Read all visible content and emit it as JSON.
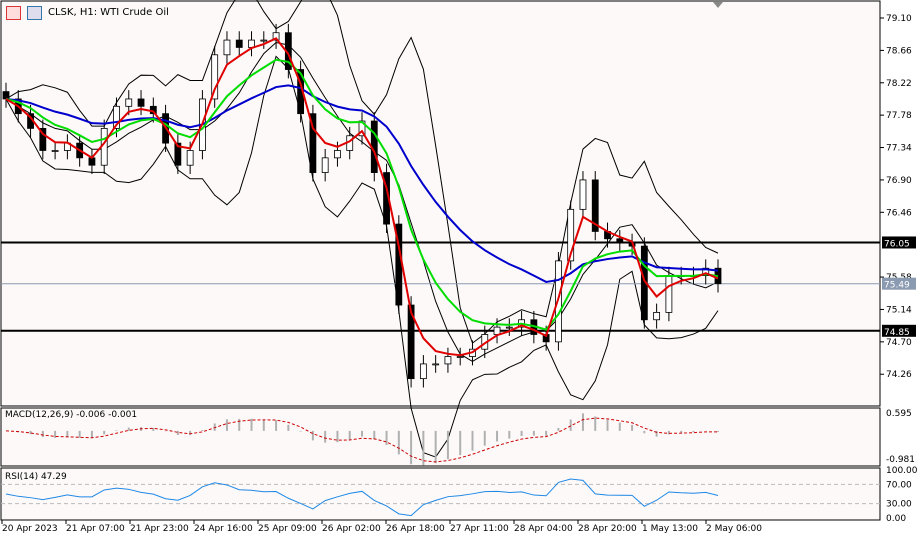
{
  "header": {
    "title": "CLSK, H1: WTI Crude Oil"
  },
  "colors": {
    "bg": "#fdf9f9",
    "fast_ma": "#e00000",
    "mid_ma": "#00dd00",
    "slow_ma": "#0000cc",
    "bands": "#000000",
    "rsi": "#1e88e5",
    "macd_signal": "#cc0000",
    "macd_hist": "#b0b0b0"
  },
  "chart_data": {
    "type": "candlestick",
    "symbol": "CLSK",
    "timeframe": "H1",
    "instrument": "WTI Crude Oil",
    "price_ticks": [
      "79.10",
      "78.66",
      "78.22",
      "77.78",
      "77.34",
      "76.90",
      "76.46",
      "75.58",
      "75.14",
      "74.70",
      "74.26"
    ],
    "ylim": [
      73.9,
      79.3
    ],
    "horizontal_lines": [
      {
        "value": 76.05,
        "label": "76.05"
      },
      {
        "value": 74.85,
        "label": "74.85"
      }
    ],
    "current_price": {
      "value": 75.49,
      "label": "75.49"
    },
    "closes": [
      78.0,
      77.8,
      77.6,
      77.3,
      77.3,
      77.4,
      77.2,
      77.1,
      77.6,
      77.9,
      78.0,
      77.9,
      77.8,
      77.4,
      77.1,
      77.3,
      78.0,
      78.6,
      78.8,
      78.7,
      78.8,
      78.8,
      78.9,
      78.4,
      77.8,
      77.0,
      77.2,
      77.3,
      77.5,
      77.7,
      77.0,
      76.3,
      75.2,
      74.2,
      74.4,
      74.4,
      74.5,
      74.5,
      74.6,
      74.8,
      74.9,
      74.9,
      75.0,
      74.8,
      74.7,
      75.8,
      76.5,
      76.9,
      76.2,
      76.1,
      76.05,
      76.0,
      75.0,
      75.1,
      75.6,
      75.6,
      75.6,
      75.7,
      75.49
    ],
    "time_labels": [
      "20 Apr 2023",
      "21 Apr 07:00",
      "21 Apr 23:00",
      "24 Apr 16:00",
      "25 Apr 09:00",
      "26 Apr 02:00",
      "26 Apr 18:00",
      "27 Apr 11:00",
      "28 Apr 04:00",
      "28 Apr 20:00",
      "1 May 13:00",
      "2 May 06:00"
    ],
    "macd": {
      "label": "MACD(12,26,9) -0.006 -0.001",
      "ticks": [
        "0.595",
        "-0.981"
      ],
      "ylim": [
        -0.981,
        0.595
      ]
    },
    "rsi": {
      "label": "RSI(14) 47.29",
      "ticks": [
        "100.00",
        "70.00",
        "30.00",
        "0.00"
      ],
      "levels": [
        70,
        30
      ],
      "ylim": [
        0,
        100
      ]
    }
  }
}
